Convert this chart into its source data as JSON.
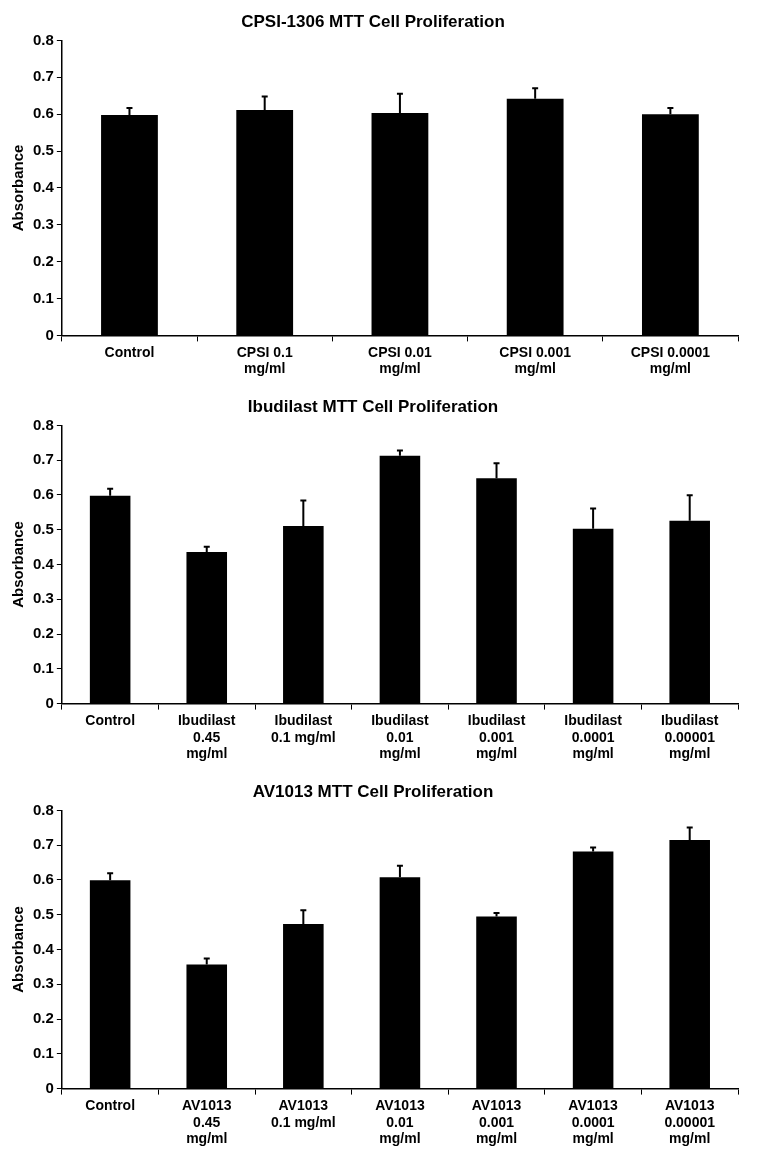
{
  "chart_data": [
    {
      "type": "bar",
      "title": "CPSI-1306 MTT Cell Proliferation",
      "ylabel": "Absorbance",
      "categories": [
        "Control",
        "CPSI 0.1 mg/ml",
        "CPSI 0.01 mg/ml",
        "CPSI 0.001 mg/ml",
        "CPSI 0.0001 mg/ml"
      ],
      "values": [
        0.598,
        0.611,
        0.603,
        0.642,
        0.6
      ],
      "errors": [
        [
          0.598,
          0.617
        ],
        [
          0.611,
          0.648
        ],
        [
          0.603,
          0.655
        ],
        [
          0.642,
          0.67
        ],
        [
          0.6,
          0.617
        ]
      ],
      "color": "#000000",
      "ylim": [
        0,
        0.8
      ],
      "yticks": [
        0,
        0.1,
        0.2,
        0.3,
        0.4,
        0.5,
        0.6,
        0.7,
        0.8
      ],
      "grid": false,
      "legend": false
    },
    {
      "type": "bar",
      "title": "Ibudilast MTT Cell Proliferation",
      "ylabel": "Absorbance",
      "categories": [
        "Control",
        "Ibudilast 0.45 mg/ml",
        "Ibudilast 0.1 mg/ml",
        "Ibudilast 0.01 mg/ml",
        "Ibudilast 0.001 mg/ml",
        "Ibudilast 0.0001 mg/ml",
        "Ibudilast 0.00001 mg/ml"
      ],
      "values": [
        0.598,
        0.436,
        0.511,
        0.713,
        0.648,
        0.503,
        0.526
      ],
      "errors": [
        [
          0.598,
          0.618
        ],
        [
          0.436,
          0.451
        ],
        [
          0.511,
          0.584
        ],
        [
          0.713,
          0.728
        ],
        [
          0.648,
          0.691
        ],
        [
          0.503,
          0.561
        ],
        [
          0.526,
          0.599
        ]
      ],
      "color": "#000000",
      "ylim": [
        0,
        0.8
      ],
      "yticks": [
        0,
        0.1,
        0.2,
        0.3,
        0.4,
        0.5,
        0.6,
        0.7,
        0.8
      ],
      "grid": false,
      "legend": false
    },
    {
      "type": "bar",
      "title": "AV1013 MTT Cell Proliferation",
      "ylabel": "Absorbance",
      "categories": [
        "Control",
        "AV1013 0.45 mg/ml",
        "AV1013 0.1 mg/ml",
        "AV1013 0.01 mg/ml",
        "AV1013 0.001 mg/ml",
        "AV1013 0.0001 mg/ml",
        "AV1013 0.00001 mg/ml"
      ],
      "values": [
        0.599,
        0.357,
        0.473,
        0.608,
        0.495,
        0.682,
        0.715
      ],
      "errors": [
        [
          0.599,
          0.619
        ],
        [
          0.357,
          0.374
        ],
        [
          0.473,
          0.513
        ],
        [
          0.608,
          0.641
        ],
        [
          0.495,
          0.505
        ],
        [
          0.682,
          0.693
        ],
        [
          0.715,
          0.751
        ]
      ],
      "color": "#000000",
      "ylim": [
        0,
        0.8
      ],
      "yticks": [
        0,
        0.1,
        0.2,
        0.3,
        0.4,
        0.5,
        0.6,
        0.7,
        0.8
      ],
      "grid": false,
      "legend": false
    }
  ]
}
